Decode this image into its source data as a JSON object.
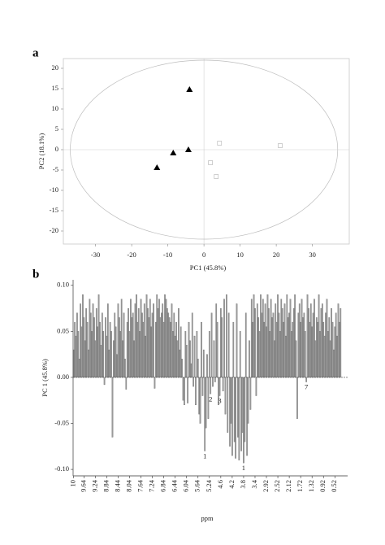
{
  "chart_data": [
    {
      "type": "scatter",
      "panel_label": "a",
      "xlabel": "PC1 (45.8%)",
      "ylabel": "PC2 (18.1%)",
      "xlim": [
        -38.9,
        40.2
      ],
      "ylim": [
        -23.2,
        22.4
      ],
      "xticks": [
        -30,
        -20,
        -10,
        0,
        10,
        20,
        30
      ],
      "yticks": [
        -20,
        -15,
        -10,
        -5,
        0,
        5,
        10,
        15,
        20
      ],
      "zero_lines": true,
      "ellipse": [
        37,
        22
      ],
      "series": [
        {
          "color": "#000000",
          "marker": "triangle",
          "x": [
            -4,
            -8.5,
            -4.3,
            -13
          ],
          "values": [
            14.8,
            -0.8,
            0,
            -4.4
          ]
        },
        {
          "color": "#bbbbbb",
          "marker": "square",
          "x": [
            4.3,
            21.1,
            1.8,
            3.4
          ],
          "values": [
            1.6,
            1,
            -3.2,
            -6.6
          ]
        }
      ]
    },
    {
      "type": "bar",
      "panel_label": "b",
      "xlabel": "ppm",
      "ylabel": "PC 1 (45.8%)",
      "color": "#9a9a9a",
      "ylim": [
        -0.107,
        0.106
      ],
      "yticks": [
        {
          "value": -0.1,
          "label": "-0.10"
        },
        -0.05,
        {
          "value": 0,
          "label": "0.00"
        },
        0.05,
        {
          "value": 0.1,
          "label": "0.10"
        }
      ],
      "zero_line": true,
      "categories": [
        "10",
        null,
        null,
        null,
        null,
        null,
        null,
        null,
        null,
        "9.64",
        null,
        null,
        null,
        null,
        null,
        null,
        null,
        null,
        null,
        "9.24",
        null,
        null,
        null,
        null,
        null,
        null,
        null,
        null,
        null,
        "8.84",
        null,
        null,
        null,
        null,
        null,
        null,
        null,
        null,
        null,
        "8.44",
        null,
        null,
        null,
        null,
        null,
        null,
        null,
        null,
        null,
        "8.04",
        null,
        null,
        null,
        null,
        null,
        null,
        null,
        null,
        null,
        "7.64",
        null,
        null,
        null,
        null,
        null,
        null,
        null,
        null,
        null,
        "7.24",
        null,
        null,
        null,
        null,
        null,
        null,
        null,
        null,
        null,
        "6.84",
        null,
        null,
        null,
        null,
        null,
        null,
        null,
        null,
        null,
        "6.44",
        null,
        null,
        null,
        null,
        null,
        null,
        null,
        null,
        null,
        "6.04",
        null,
        null,
        null,
        null,
        null,
        null,
        null,
        null,
        null,
        "5.64",
        null,
        null,
        null,
        null,
        null,
        null,
        null,
        null,
        null,
        "5.24",
        null,
        null,
        null,
        null,
        null,
        null,
        null,
        null,
        null,
        "4.6",
        null,
        null,
        null,
        null,
        null,
        null,
        null,
        null,
        null,
        "4.2",
        null,
        null,
        null,
        null,
        null,
        null,
        null,
        null,
        null,
        "3.8",
        null,
        null,
        null,
        null,
        null,
        null,
        null,
        null,
        null,
        "3.4",
        null,
        null,
        null,
        null,
        null,
        null,
        null,
        null,
        null,
        "2.92",
        null,
        null,
        null,
        null,
        null,
        null,
        null,
        null,
        null,
        "2.52",
        null,
        null,
        null,
        null,
        null,
        null,
        null,
        null,
        null,
        "2.12",
        null,
        null,
        null,
        null,
        null,
        null,
        null,
        null,
        null,
        "1.72",
        null,
        null,
        null,
        null,
        null,
        null,
        null,
        null,
        null,
        "1.32",
        null,
        null,
        null,
        null,
        null,
        null,
        null,
        null,
        null,
        "0.92",
        null,
        null,
        null,
        null,
        null,
        null,
        null,
        null,
        null,
        "0.52",
        null,
        null,
        null,
        null,
        null
      ],
      "values": [
        0.03,
        0.06,
        0.045,
        0.07,
        0.05,
        0.02,
        0.08,
        0.055,
        0.09,
        0.065,
        0.04,
        0.075,
        0.06,
        0.03,
        0.085,
        0.07,
        0.05,
        0.08,
        0.065,
        0.04,
        0.075,
        0.055,
        0.09,
        0.06,
        0.035,
        0.07,
        0.05,
        -0.008,
        0.065,
        0.045,
        0.08,
        0.03,
        0.06,
        0.05,
        -0.065,
        0.04,
        0.07,
        0.055,
        0.025,
        0.08,
        0.065,
        0.05,
        0.085,
        0.04,
        0.07,
        0.02,
        -0.013,
        0.06,
        0.075,
        0.05,
        0.085,
        0.065,
        0.07,
        0.04,
        0.08,
        0.09,
        0.06,
        0.075,
        0.05,
        0.085,
        0.07,
        0.06,
        0.08,
        0.045,
        0.09,
        0.075,
        0.065,
        0.085,
        0.055,
        0.07,
        0.08,
        -0.012,
        0.06,
        0.09,
        0.075,
        0.085,
        0.065,
        0.07,
        0.08,
        0.06,
        0.09,
        0.085,
        0.075,
        0.07,
        0.065,
        0.06,
        0.08,
        0.05,
        0.07,
        0.045,
        0.06,
        0.04,
        0.075,
        0.03,
        0.055,
        0.02,
        -0.025,
        -0.03,
        0.05,
        0.035,
        -0.028,
        0.06,
        0.04,
        0.015,
        0.07,
        -0.01,
        0.045,
        -0.03,
        0.05,
        0.02,
        -0.04,
        -0.05,
        0.06,
        -0.02,
        0.03,
        -0.08,
        -0.055,
        0.025,
        -0.045,
        0.05,
        -0.018,
        0.07,
        -0.01,
        0.04,
        -0.005,
        0.08,
        0.06,
        -0.03,
        -0.02,
        0.075,
        0.065,
        -0.015,
        0.085,
        -0.04,
        0.09,
        -0.06,
        0.07,
        -0.075,
        -0.05,
        -0.085,
        0.06,
        -0.07,
        -0.088,
        0.08,
        -0.065,
        -0.09,
        0.05,
        -0.08,
        -0.06,
        -0.093,
        -0.07,
        0.07,
        -0.085,
        -0.05,
        0.04,
        -0.035,
        0.085,
        0.06,
        0.09,
        0.075,
        -0.02,
        0.08,
        0.065,
        0.05,
        0.09,
        0.07,
        0.085,
        0.06,
        0.08,
        0.055,
        0.09,
        0.075,
        0.05,
        0.085,
        0.065,
        0.07,
        0.04,
        0.08,
        0.06,
        0.09,
        0.07,
        0.05,
        0.085,
        0.075,
        0.06,
        0.08,
        0.045,
        0.09,
        0.065,
        0.07,
        0.085,
        0.05,
        0.06,
        0.075,
        0.09,
        0.04,
        -0.045,
        0.07,
        0.08,
        0.06,
        0.085,
        0.065,
        0.07,
        0.05,
        -0.005,
        0.09,
        0.075,
        0.06,
        0.08,
        0.055,
        0.07,
        0.085,
        0.04,
        0.065,
        0.06,
        0.09,
        0.05,
        0.075,
        0.08,
        0.06,
        0.045,
        0.07,
        0.085,
        0.05,
        0.065,
        0.04,
        0.075,
        0.06,
        0.03,
        0.055,
        0.07,
        0.045,
        0.08,
        0.06,
        0.075
      ],
      "peak_labels": [
        null,
        null,
        null,
        null,
        null,
        null,
        null,
        null,
        null,
        null,
        null,
        null,
        null,
        null,
        null,
        null,
        null,
        null,
        null,
        null,
        null,
        null,
        null,
        null,
        null,
        null,
        null,
        null,
        null,
        null,
        null,
        null,
        null,
        null,
        null,
        null,
        null,
        null,
        null,
        null,
        null,
        null,
        null,
        null,
        null,
        null,
        null,
        null,
        null,
        null,
        null,
        null,
        null,
        null,
        null,
        null,
        null,
        null,
        null,
        null,
        null,
        null,
        null,
        null,
        null,
        null,
        null,
        null,
        null,
        null,
        null,
        null,
        null,
        null,
        null,
        null,
        null,
        null,
        null,
        null,
        null,
        null,
        null,
        null,
        null,
        null,
        null,
        null,
        null,
        null,
        null,
        null,
        null,
        null,
        null,
        null,
        null,
        null,
        null,
        null,
        null,
        null,
        null,
        null,
        null,
        null,
        null,
        null,
        null,
        null,
        null,
        null,
        null,
        null,
        null,
        "1",
        null,
        null,
        null,
        null,
        "2",
        null,
        null,
        null,
        null,
        null,
        null,
        null,
        "3",
        null,
        null,
        null,
        null,
        null,
        null,
        null,
        null,
        null,
        null,
        null,
        null,
        null,
        null,
        null,
        null,
        null,
        null,
        null,
        null,
        "1",
        null,
        null,
        null,
        null,
        null,
        null,
        null,
        null,
        null,
        null,
        null,
        null,
        null,
        null,
        null,
        null,
        null,
        null,
        null,
        null,
        null,
        null,
        null,
        null,
        null,
        null,
        null,
        null,
        null,
        null,
        null,
        null,
        null,
        null,
        null,
        null,
        null,
        null,
        null,
        null,
        null,
        null,
        null,
        null,
        null,
        null,
        null,
        null,
        null,
        null,
        null,
        null,
        null,
        null,
        "7",
        null,
        null,
        null,
        null,
        null,
        null,
        null,
        null,
        null,
        null,
        null,
        null,
        null,
        null,
        null,
        null,
        null,
        null,
        null,
        null,
        null,
        null,
        null,
        null,
        null,
        null,
        null,
        null,
        null,
        null
      ]
    }
  ]
}
